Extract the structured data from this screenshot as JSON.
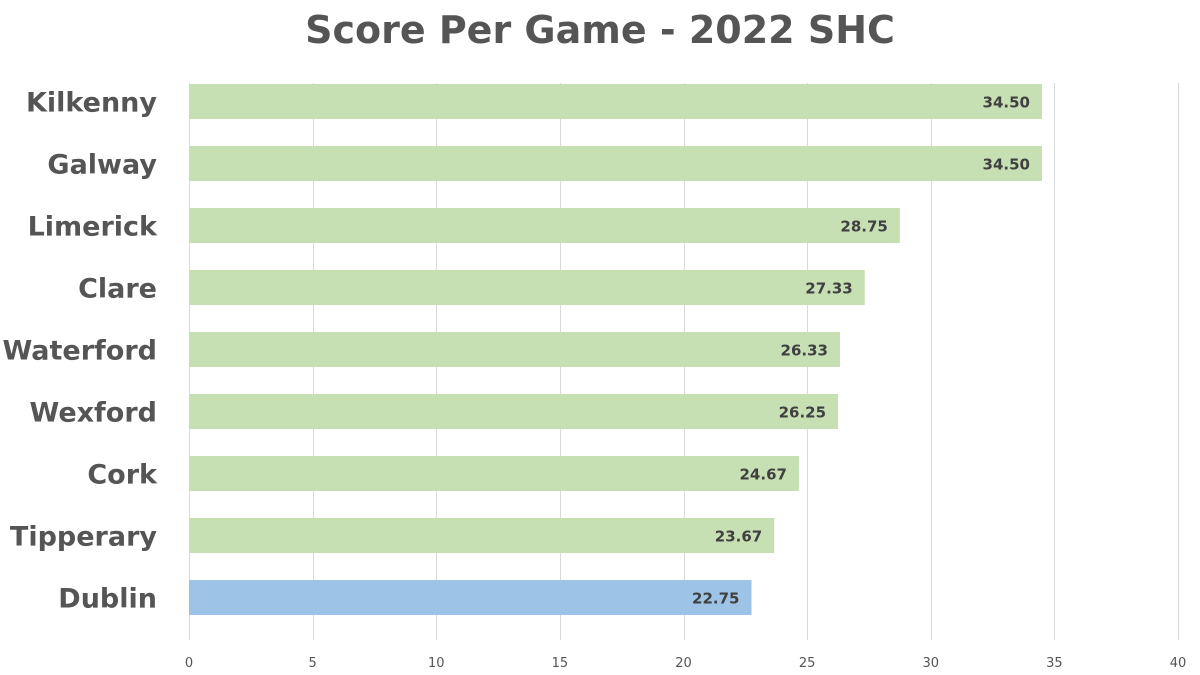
{
  "chart_data": {
    "type": "bar",
    "orientation": "horizontal",
    "title": "Score Per Game - 2022 SHC",
    "xlabel": "",
    "ylabel": "",
    "categories": [
      "Kilkenny",
      "Galway",
      "Limerick",
      "Clare",
      "Waterford",
      "Wexford",
      "Cork",
      "Tipperary",
      "Dublin"
    ],
    "values": [
      34.5,
      34.5,
      28.75,
      27.33,
      26.33,
      26.25,
      24.67,
      23.67,
      22.75
    ],
    "value_labels": [
      "34.50",
      "34.50",
      "28.75",
      "27.33",
      "26.33",
      "26.25",
      "24.67",
      "23.67",
      "22.75"
    ],
    "bar_colors": [
      "#c6e0b4",
      "#c6e0b4",
      "#c6e0b4",
      "#c6e0b4",
      "#c6e0b4",
      "#c6e0b4",
      "#c6e0b4",
      "#c6e0b4",
      "#9dc3e6"
    ],
    "xlim": [
      0,
      40
    ],
    "xticks": [
      0,
      5,
      10,
      15,
      20,
      25,
      30,
      35,
      40
    ],
    "grid": "vertical",
    "legend": "none"
  }
}
